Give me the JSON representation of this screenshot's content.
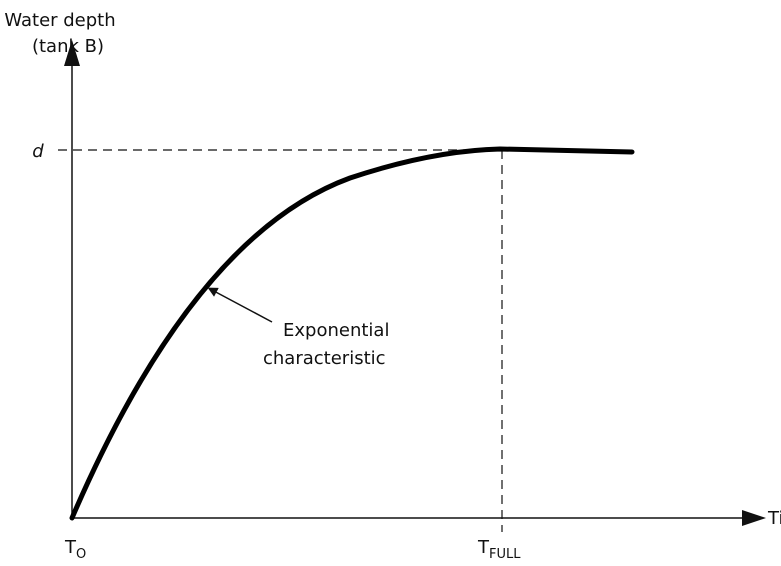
{
  "y_axis": {
    "label": [
      "Water depth",
      "(tank B)"
    ],
    "level": "d"
  },
  "x_axis": {
    "label": "Time",
    "start": {
      "main": "T",
      "sub": "O"
    },
    "end": {
      "main": "T",
      "sub": "FULL"
    }
  },
  "annotation": [
    "Exponential",
    "characteristic"
  ]
}
